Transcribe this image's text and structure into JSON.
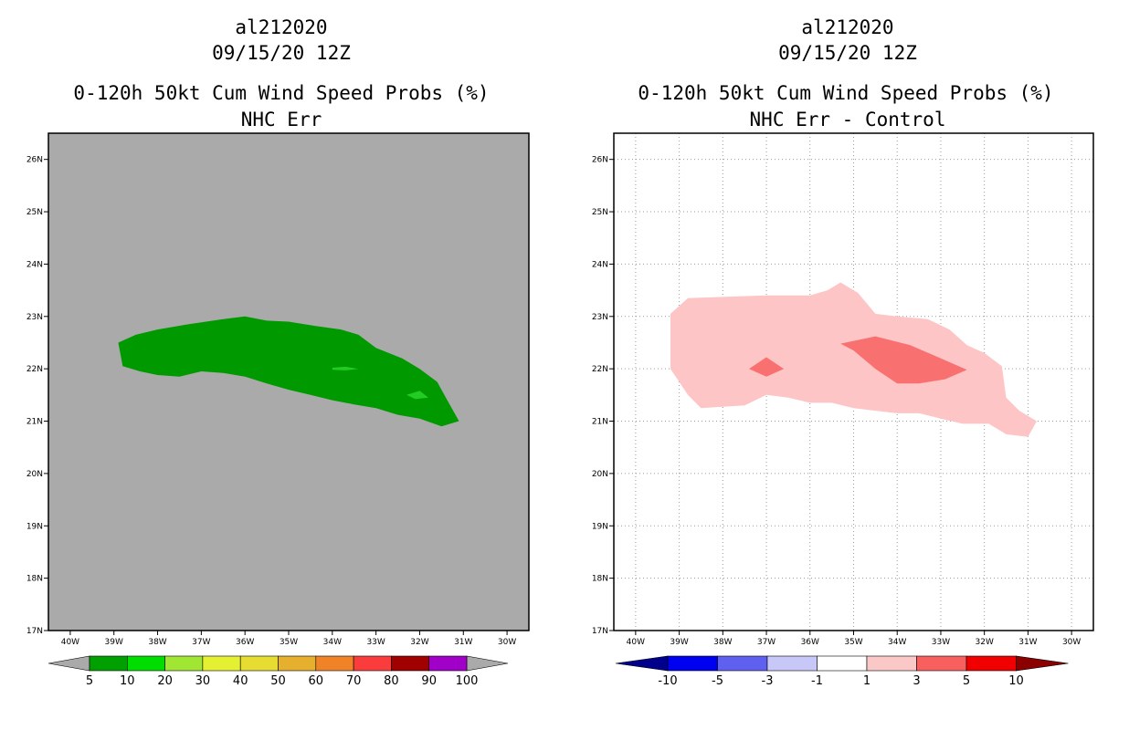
{
  "panels": {
    "left": {
      "storm": "al212020",
      "datetime": "09/15/20 12Z",
      "title": "0-120h 50kt Cum Wind Speed Probs (%)",
      "subtitle": "NHC Err"
    },
    "right": {
      "storm": "al212020",
      "datetime": "09/15/20 12Z",
      "title": "0-120h 50kt Cum Wind Speed Probs (%)",
      "subtitle": "NHC Err - Control"
    }
  },
  "chart_data": [
    {
      "type": "heatmap",
      "panel": "left",
      "title": "0-120h 50kt Cum Wind Speed Probs (%)",
      "subtitle": "NHC Err",
      "background_color": "#aaaaaa",
      "grid": false,
      "xlim": [
        -40.5,
        -29.5
      ],
      "ylim": [
        17,
        26.5
      ],
      "x_ticks": [
        -40,
        -39,
        -38,
        -37,
        -36,
        -35,
        -34,
        -33,
        -32,
        -31,
        -30
      ],
      "x_tick_labels": [
        "40W",
        "39W",
        "38W",
        "37W",
        "36W",
        "35W",
        "34W",
        "33W",
        "32W",
        "31W",
        "30W"
      ],
      "y_ticks": [
        17,
        18,
        19,
        20,
        21,
        22,
        23,
        24,
        25,
        26
      ],
      "y_tick_labels": [
        "17N",
        "18N",
        "19N",
        "20N",
        "21N",
        "22N",
        "23N",
        "24N",
        "25N",
        "26N"
      ],
      "colorbar": {
        "labels": [
          "5",
          "10",
          "20",
          "30",
          "40",
          "50",
          "60",
          "70",
          "80",
          "90",
          "100"
        ],
        "colors": [
          "#00a000",
          "#00dd00",
          "#a0e632",
          "#e6f032",
          "#e6dc32",
          "#e6af2d",
          "#f08228",
          "#fa3c3c",
          "#a00000",
          "#a000c8"
        ],
        "under_color": "#aaaaaa",
        "over_color": "#aaaaaa"
      },
      "contours": [
        {
          "level": "5-10",
          "color": "#009900",
          "points": [
            [
              -38.9,
              22.5
            ],
            [
              -38.5,
              22.65
            ],
            [
              -38,
              22.75
            ],
            [
              -37.3,
              22.85
            ],
            [
              -36.5,
              22.95
            ],
            [
              -36,
              23
            ],
            [
              -35.5,
              22.92
            ],
            [
              -35,
              22.9
            ],
            [
              -34.4,
              22.82
            ],
            [
              -33.8,
              22.75
            ],
            [
              -33.4,
              22.65
            ],
            [
              -33,
              22.4
            ],
            [
              -32.4,
              22.2
            ],
            [
              -32,
              22
            ],
            [
              -31.6,
              21.75
            ],
            [
              -31.4,
              21.45
            ],
            [
              -31.1,
              21
            ],
            [
              -31.5,
              20.9
            ],
            [
              -32,
              21.05
            ],
            [
              -32.5,
              21.12
            ],
            [
              -33,
              21.25
            ],
            [
              -33.5,
              21.32
            ],
            [
              -34,
              21.4
            ],
            [
              -34.5,
              21.5
            ],
            [
              -35,
              21.6
            ],
            [
              -35.5,
              21.72
            ],
            [
              -36,
              21.85
            ],
            [
              -36.5,
              21.92
            ],
            [
              -37,
              21.95
            ],
            [
              -37.5,
              21.85
            ],
            [
              -38,
              21.88
            ],
            [
              -38.4,
              21.95
            ],
            [
              -38.8,
              22.05
            ]
          ]
        },
        {
          "level": "10-20",
          "color": "#22cc22",
          "points": [
            [
              -34,
              22.02
            ],
            [
              -33.7,
              22.04
            ],
            [
              -33.4,
              22
            ],
            [
              -33.7,
              21.97
            ],
            [
              -34,
              21.98
            ]
          ]
        },
        {
          "level": "10-20",
          "color": "#22cc22",
          "points": [
            [
              -32.3,
              21.5
            ],
            [
              -32,
              21.58
            ],
            [
              -31.8,
              21.45
            ],
            [
              -32.1,
              21.42
            ]
          ]
        }
      ]
    },
    {
      "type": "heatmap",
      "panel": "right",
      "title": "0-120h 50kt Cum Wind Speed Probs (%)",
      "subtitle": "NHC Err - Control",
      "background_color": "#ffffff",
      "grid": true,
      "xlim": [
        -40.5,
        -29.5
      ],
      "ylim": [
        17,
        26.5
      ],
      "x_ticks": [
        -40,
        -39,
        -38,
        -37,
        -36,
        -35,
        -34,
        -33,
        -32,
        -31,
        -30
      ],
      "x_tick_labels": [
        "40W",
        "39W",
        "38W",
        "37W",
        "36W",
        "35W",
        "34W",
        "33W",
        "32W",
        "31W",
        "30W"
      ],
      "y_ticks": [
        17,
        18,
        19,
        20,
        21,
        22,
        23,
        24,
        25,
        26
      ],
      "y_tick_labels": [
        "17N",
        "18N",
        "19N",
        "20N",
        "21N",
        "22N",
        "23N",
        "24N",
        "25N",
        "26N"
      ],
      "colorbar": {
        "labels": [
          "-10",
          "-5",
          "-3",
          "-1",
          "1",
          "3",
          "5",
          "10"
        ],
        "colors": [
          "#0000f0",
          "#6060f0",
          "#c8c8f8",
          "#ffffff",
          "#fbc8c8",
          "#f86060",
          "#f00000"
        ],
        "under_color": "#00008b",
        "over_color": "#8b0000"
      },
      "contours": [
        {
          "level": "1-3",
          "color": "#fdc5c5",
          "points": [
            [
              -39.2,
              23.05
            ],
            [
              -38.8,
              23.35
            ],
            [
              -37,
              23.4
            ],
            [
              -36,
              23.4
            ],
            [
              -35.6,
              23.5
            ],
            [
              -35.3,
              23.65
            ],
            [
              -34.9,
              23.45
            ],
            [
              -34.5,
              23.05
            ],
            [
              -34,
              23
            ],
            [
              -33.3,
              22.95
            ],
            [
              -32.8,
              22.75
            ],
            [
              -32.4,
              22.45
            ],
            [
              -32,
              22.3
            ],
            [
              -31.6,
              22.05
            ],
            [
              -31.5,
              21.45
            ],
            [
              -31.2,
              21.2
            ],
            [
              -30.8,
              21
            ],
            [
              -31,
              20.7
            ],
            [
              -31.5,
              20.75
            ],
            [
              -31.9,
              20.95
            ],
            [
              -32.5,
              20.95
            ],
            [
              -33,
              21.05
            ],
            [
              -33.5,
              21.15
            ],
            [
              -34,
              21.15
            ],
            [
              -34.5,
              21.2
            ],
            [
              -35,
              21.25
            ],
            [
              -35.5,
              21.35
            ],
            [
              -36,
              21.35
            ],
            [
              -36.5,
              21.45
            ],
            [
              -37,
              21.5
            ],
            [
              -37.5,
              21.3
            ],
            [
              -38.5,
              21.25
            ],
            [
              -38.8,
              21.5
            ],
            [
              -39.2,
              22
            ]
          ]
        },
        {
          "level": "3-5",
          "color": "#f97070",
          "points": [
            [
              -37.4,
              22
            ],
            [
              -37,
              22.22
            ],
            [
              -36.6,
              22
            ],
            [
              -37,
              21.85
            ]
          ]
        },
        {
          "level": "3-5",
          "color": "#f97070",
          "points": [
            [
              -35.3,
              22.48
            ],
            [
              -34.5,
              22.62
            ],
            [
              -33.7,
              22.45
            ],
            [
              -33,
              22.2
            ],
            [
              -32.4,
              21.98
            ],
            [
              -32.9,
              21.8
            ],
            [
              -33.5,
              21.72
            ],
            [
              -34,
              21.72
            ],
            [
              -34.5,
              22
            ],
            [
              -35,
              22.35
            ]
          ]
        }
      ]
    }
  ]
}
